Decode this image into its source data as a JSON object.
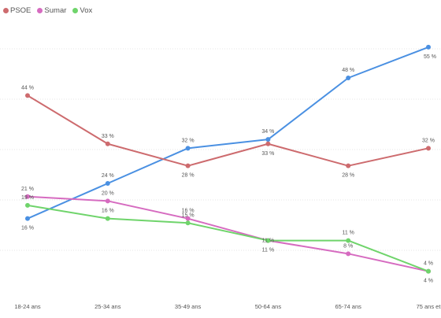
{
  "legend": {
    "items": [
      {
        "label": "PSOE"
      },
      {
        "label": "Sumar"
      },
      {
        "label": "Vox"
      }
    ]
  },
  "chart_data": {
    "type": "line",
    "title": "",
    "xlabel": "",
    "ylabel": "",
    "categories": [
      "18-24 ans",
      "25-34 ans",
      "35-49 ans",
      "50-64 ans",
      "65-74 ans",
      "75 ans et"
    ],
    "value_suffix": " %",
    "ylim": [
      0,
      60
    ],
    "grid": true,
    "legend_position": "top-left",
    "series": [
      {
        "name": "",
        "color": "#4a90e2",
        "values": [
          16,
          24,
          32,
          34,
          48,
          55
        ]
      },
      {
        "name": "PSOE",
        "color": "#cd6b6e",
        "values": [
          44,
          33,
          28,
          33,
          28,
          32
        ]
      },
      {
        "name": "Sumar",
        "color": "#d66bc0",
        "values": [
          21,
          20,
          16,
          11,
          8,
          4
        ]
      },
      {
        "name": "Vox",
        "color": "#6fd46b",
        "values": [
          19,
          16,
          15,
          11,
          11,
          4
        ]
      }
    ]
  }
}
